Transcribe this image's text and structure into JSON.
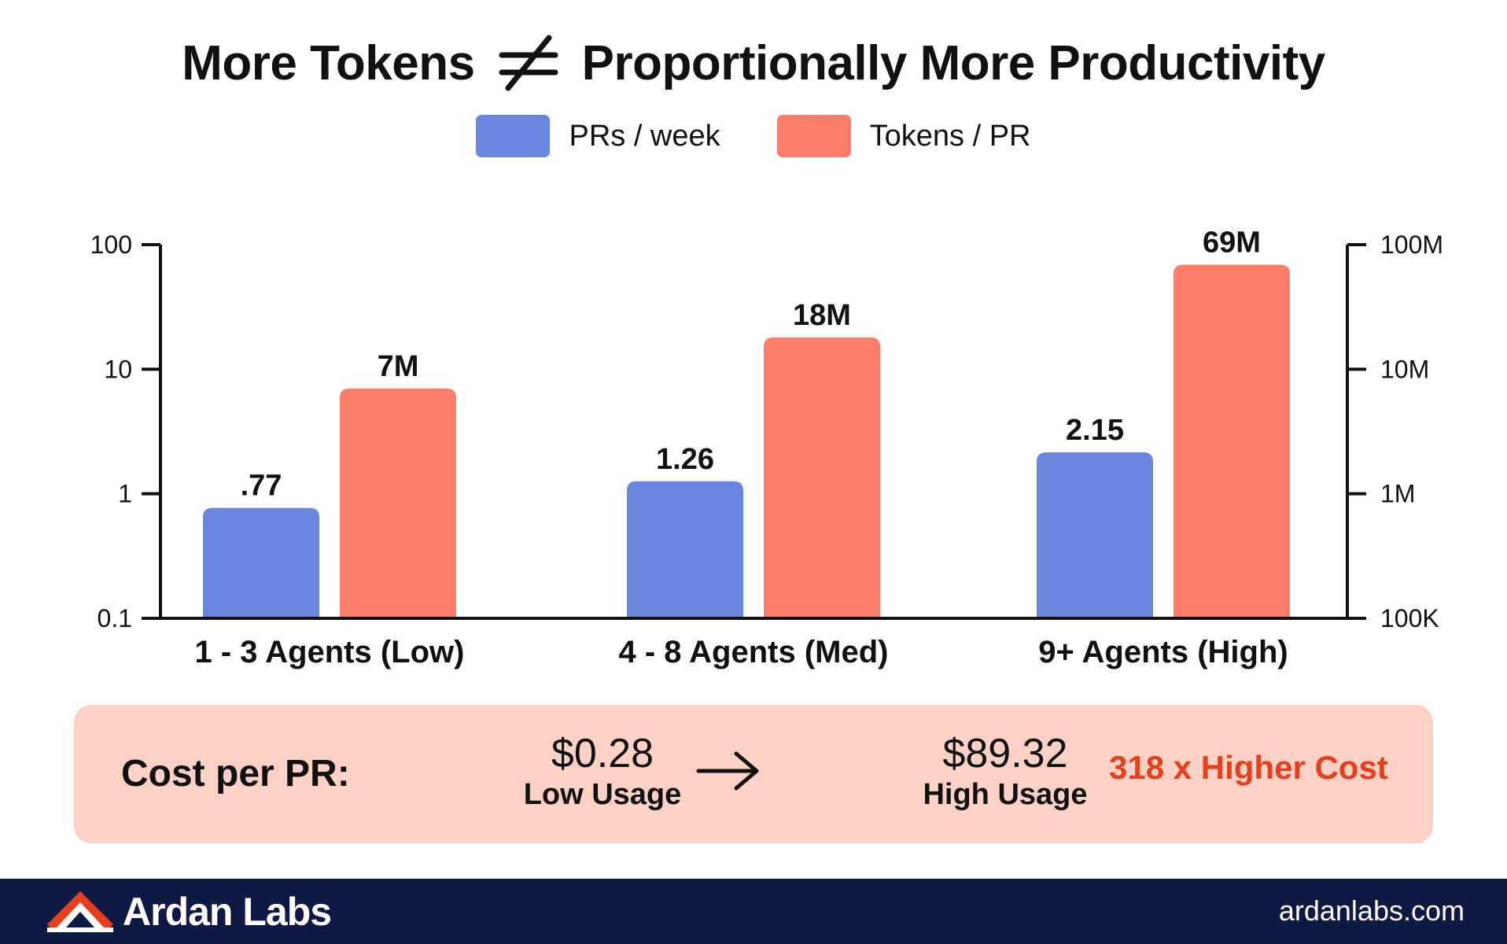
{
  "title": {
    "left": "More Tokens",
    "symbol": "≠",
    "right": "Proportionally More Productivity"
  },
  "legend": [
    {
      "label": "PRs / week",
      "color": "#6a87e0"
    },
    {
      "label": "Tokens / PR",
      "color": "#ff7e6b"
    }
  ],
  "chart_data": {
    "type": "bar",
    "categories": [
      "1 - 3 Agents (Low)",
      "4 - 8 Agents (Med)",
      "9+ Agents (High)"
    ],
    "series": [
      {
        "name": "PRs / week",
        "axis": "left",
        "color": "#6a87e0",
        "values": [
          0.77,
          1.26,
          2.15
        ],
        "labels": [
          ".77",
          "1.26",
          "2.15"
        ]
      },
      {
        "name": "Tokens / PR",
        "axis": "right",
        "color": "#ff7e6b",
        "values": [
          7000000,
          18000000,
          69000000
        ],
        "labels": [
          "7M",
          "18M",
          "69M"
        ]
      }
    ],
    "y_left": {
      "scale": "log",
      "range": [
        0.1,
        100
      ],
      "ticks": [
        100,
        10,
        1,
        0.1
      ],
      "tick_labels": [
        "100",
        "10",
        "1",
        "0.1"
      ]
    },
    "y_right": {
      "scale": "log",
      "range": [
        100000,
        100000000
      ],
      "ticks": [
        100000000,
        10000000,
        1000000,
        100000
      ],
      "tick_labels": [
        "100M",
        "10M",
        "1M",
        "100K"
      ]
    },
    "grid": false,
    "legend_position": "top-center"
  },
  "cost": {
    "label": "Cost per PR:",
    "low": {
      "value": "$0.28",
      "label": "Low Usage"
    },
    "high": {
      "value": "$89.32",
      "label": "High Usage"
    },
    "multiplier": "318 x Higher Cost",
    "emphasis_color": "#e4401d"
  },
  "footer": {
    "brand": "Ardan Labs",
    "website": "ardanlabs.com"
  }
}
